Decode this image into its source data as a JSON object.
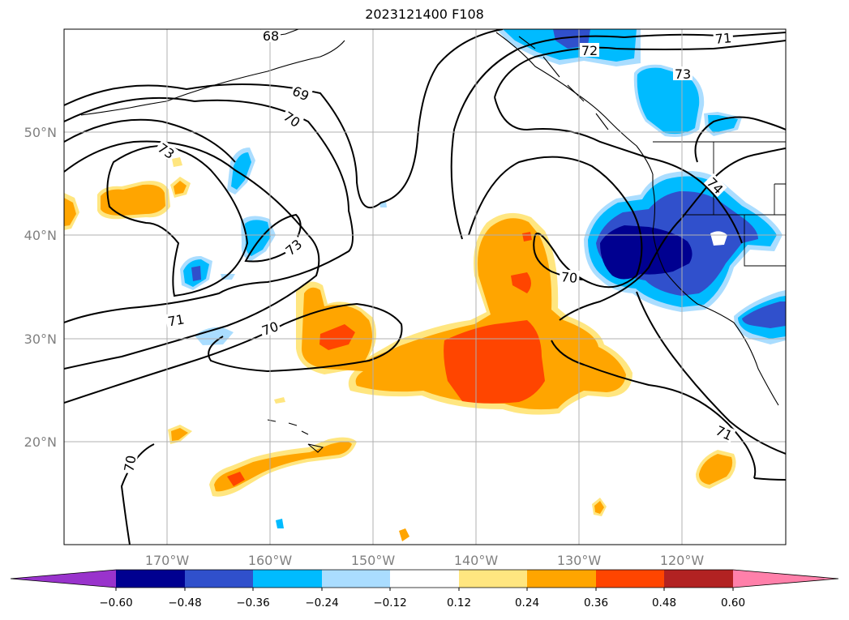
{
  "title": "2023121400 F108",
  "lat_labels": [
    "50°N",
    "40°N",
    "30°N",
    "20°N"
  ],
  "lon_labels": [
    "170°W",
    "160°W",
    "150°W",
    "140°W",
    "130°W",
    "120°W"
  ],
  "contour_labels": [
    "68",
    "69",
    "70",
    "73",
    "73",
    "72",
    "71",
    "73",
    "74",
    "70",
    "71",
    "70",
    "71",
    "70"
  ],
  "colorbar": {
    "ticks": [
      "−0.60",
      "−0.48",
      "−0.36",
      "−0.24",
      "−0.12",
      "0.12",
      "0.24",
      "0.36",
      "0.48",
      "0.60"
    ],
    "colors": [
      "#9933cc",
      "#000090",
      "#3050cc",
      "#00bbff",
      "#aaddff",
      "#ffffff",
      "#ffe680",
      "#ffa500",
      "#ff4500",
      "#b22222",
      "#ff80aa"
    ]
  }
}
